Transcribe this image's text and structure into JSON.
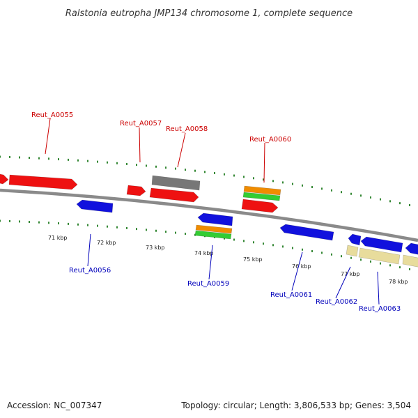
{
  "title": "Ralstonia eutropha JMP134 chromosome 1, complete sequence",
  "footer": {
    "accession": "Accession: NC_007347",
    "info": "Topology: circular; Length: 3,806,533 bp; Genes: 3,504"
  },
  "colors": {
    "backbone": "#8a8a8a",
    "tick": "#1e7a1e",
    "forward_label": "#cc0000",
    "reverse_label": "#0000bb",
    "red": "#ee1111",
    "blue": "#1111dd",
    "gray": "#777777",
    "orange": "#f08c00",
    "green": "#33cc33",
    "tan": "#e8dc9c"
  },
  "scale_labels": [
    "71 kbp",
    "72 kbp",
    "73 kbp",
    "74 kbp",
    "75 kbp",
    "76 kbp",
    "77 kbp",
    "78 kbp"
  ],
  "gene_labels": [
    {
      "text": "Reut_A0055",
      "strand": "forward"
    },
    {
      "text": "Reut_A0056",
      "strand": "reverse"
    },
    {
      "text": "Reut_A0057",
      "strand": "forward"
    },
    {
      "text": "Reut_A0058",
      "strand": "forward"
    },
    {
      "text": "Reut_A0059",
      "strand": "reverse"
    },
    {
      "text": "Reut_A0060",
      "strand": "forward"
    },
    {
      "text": "Reut_A0061",
      "strand": "reverse"
    },
    {
      "text": "Reut_A0062",
      "strand": "reverse"
    },
    {
      "text": "Reut_A0063",
      "strand": "reverse"
    }
  ]
}
